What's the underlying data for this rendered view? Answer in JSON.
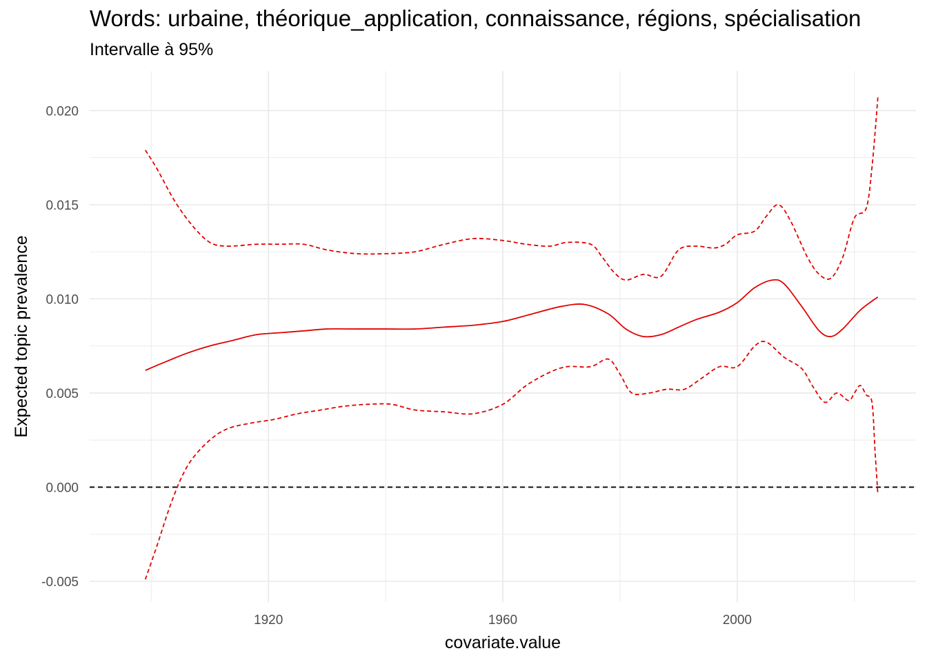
{
  "chart_data": {
    "type": "line",
    "title": "Words: urbaine, théorique_application, connaissance, régions, spécialisation",
    "subtitle": "Intervalle à 95%",
    "xlabel": "covariate.value",
    "ylabel": "Expected topic prevalence",
    "xlim": [
      1889.5,
      2030.5
    ],
    "ylim": [
      -0.0061,
      0.0221
    ],
    "x_ticks": [
      1920,
      1960,
      2000
    ],
    "x_tick_labels": [
      "1920",
      "1960",
      "2000"
    ],
    "y_ticks": [
      -0.005,
      0.0,
      0.005,
      0.01,
      0.015,
      0.02
    ],
    "y_tick_labels": [
      "-0.005",
      "0.000",
      "0.005",
      "0.010",
      "0.015",
      "0.020"
    ],
    "grid": true,
    "reference_line": {
      "y": 0.0,
      "style": "dashed",
      "color": "#000000"
    },
    "colors": {
      "series": "#e00000",
      "grid": "#ebebeb",
      "reference": "#000000"
    },
    "series": [
      {
        "role": "estimate",
        "style": "solid",
        "x": [
          1899,
          1902,
          1906,
          1910,
          1914,
          1918,
          1922,
          1926,
          1930,
          1935,
          1940,
          1945,
          1950,
          1955,
          1960,
          1965,
          1970,
          1974,
          1978,
          1981,
          1984,
          1987,
          1990,
          1993,
          1997,
          2000,
          2003,
          2006,
          2008,
          2011,
          2014,
          2016,
          2018,
          2021,
          2024
        ],
        "y": [
          0.0062,
          0.0066,
          0.0071,
          0.0075,
          0.0078,
          0.0081,
          0.0082,
          0.0083,
          0.0084,
          0.0084,
          0.0084,
          0.0084,
          0.0085,
          0.0086,
          0.0088,
          0.0092,
          0.0096,
          0.0097,
          0.0092,
          0.0084,
          0.008,
          0.0081,
          0.0085,
          0.0089,
          0.0093,
          0.0098,
          0.0106,
          0.011,
          0.0108,
          0.0096,
          0.0083,
          0.008,
          0.0084,
          0.0094,
          0.0101
        ]
      },
      {
        "role": "upper-95",
        "style": "dashed",
        "x": [
          1899,
          1901,
          1904,
          1907,
          1910,
          1913,
          1918,
          1922,
          1926,
          1930,
          1935,
          1940,
          1945,
          1950,
          1955,
          1960,
          1964,
          1968,
          1971,
          1975,
          1977,
          1979,
          1981,
          1984,
          1987,
          1990,
          1993,
          1996,
          1998,
          2000,
          2003,
          2005,
          2007,
          2009,
          2012,
          2014,
          2016,
          2018,
          2020,
          2022,
          2023,
          2024
        ],
        "y": [
          0.0179,
          0.0169,
          0.0152,
          0.0139,
          0.013,
          0.0128,
          0.0129,
          0.0129,
          0.0129,
          0.0126,
          0.0124,
          0.0124,
          0.0125,
          0.0129,
          0.0132,
          0.0131,
          0.0129,
          0.0128,
          0.013,
          0.0129,
          0.0122,
          0.0114,
          0.011,
          0.0113,
          0.0112,
          0.0126,
          0.0128,
          0.0127,
          0.0129,
          0.0134,
          0.0136,
          0.0144,
          0.015,
          0.0142,
          0.0122,
          0.0113,
          0.0111,
          0.0122,
          0.0143,
          0.0148,
          0.017,
          0.0207
        ]
      },
      {
        "role": "lower-95",
        "style": "dashed",
        "x": [
          1899,
          1901,
          1903,
          1905,
          1907,
          1910,
          1913,
          1917,
          1921,
          1925,
          1929,
          1933,
          1937,
          1941,
          1945,
          1950,
          1955,
          1960,
          1964,
          1968,
          1971,
          1975,
          1978,
          1980,
          1982,
          1985,
          1988,
          1991,
          1994,
          1997,
          2000,
          2003,
          2005,
          2008,
          2011,
          2013,
          2015,
          2017,
          2019,
          2020,
          2021,
          2022,
          2023,
          2023.5,
          2024
        ],
        "y": [
          -0.0049,
          -0.0031,
          -0.0012,
          0.0004,
          0.0015,
          0.0025,
          0.0031,
          0.0034,
          0.0036,
          0.0039,
          0.0041,
          0.0043,
          0.0044,
          0.0044,
          0.0041,
          0.004,
          0.0039,
          0.0044,
          0.0054,
          0.0061,
          0.0064,
          0.0064,
          0.0068,
          0.006,
          0.005,
          0.005,
          0.0052,
          0.0052,
          0.0058,
          0.0064,
          0.0064,
          0.0075,
          0.0077,
          0.0069,
          0.0063,
          0.0053,
          0.0045,
          0.005,
          0.0046,
          0.005,
          0.0054,
          0.0049,
          0.0045,
          0.002,
          -0.0004
        ]
      }
    ]
  }
}
